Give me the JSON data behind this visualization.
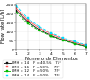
{
  "title": "",
  "xlabel": "Numero de Elementos",
  "ylabel": "Flow rate [L/h]",
  "x": [
    1,
    2,
    3,
    4,
    5,
    6,
    7
  ],
  "series": [
    {
      "label": "LMH = 14    F = 40.5%   75°",
      "color": "#111111",
      "linestyle": "-",
      "marker": "s",
      "markersize": 1.5,
      "linewidth": 0.6,
      "values": [
        220,
        155,
        110,
        78,
        54,
        35,
        18
      ]
    },
    {
      "label": "LMH = 16    F = 50%     75°",
      "color": "#ff5555",
      "linestyle": "-",
      "marker": "s",
      "markersize": 1.5,
      "linewidth": 0.6,
      "values": [
        232,
        165,
        120,
        87,
        61,
        41,
        24
      ]
    },
    {
      "label": "LMH = 12    F = 50%     75°",
      "color": "#00bb00",
      "linestyle": "--",
      "marker": "s",
      "markersize": 1.5,
      "linewidth": 0.6,
      "values": [
        208,
        145,
        105,
        74,
        51,
        33,
        17
      ]
    },
    {
      "label": "LMH = 14    F = 50%     75°",
      "color": "#00ddff",
      "linestyle": "--",
      "marker": "s",
      "markersize": 1.5,
      "linewidth": 0.6,
      "values": [
        245,
        175,
        128,
        93,
        66,
        45,
        27
      ]
    }
  ],
  "xlim": [
    1,
    7
  ],
  "ylim": [
    0,
    260
  ],
  "xticks": [
    1,
    2,
    3,
    4,
    5,
    6,
    7
  ],
  "yticks": [
    0,
    50,
    100,
    150,
    200,
    250
  ],
  "legend_fontsize": 2.8,
  "axis_label_fontsize": 3.8,
  "tick_fontsize": 3.2,
  "background_color": "#ffffff",
  "grid": true,
  "legend_ncol": 2
}
